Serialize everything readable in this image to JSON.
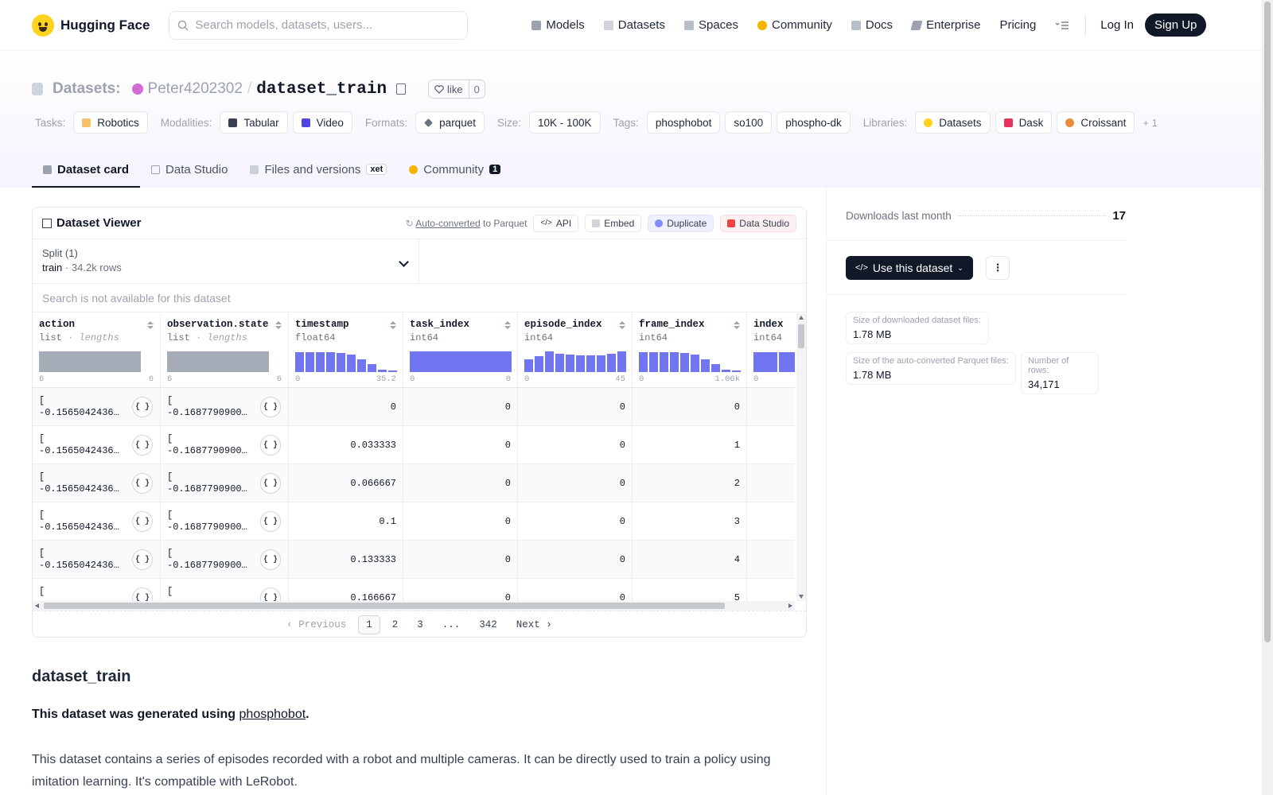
{
  "header": {
    "brand": "Hugging Face",
    "search_placeholder": "Search models, datasets, users...",
    "nav": [
      {
        "label": "Models",
        "icon": "cube-icon",
        "color": "#9ca3af"
      },
      {
        "label": "Datasets",
        "icon": "database-icon",
        "color": "#cfd3da"
      },
      {
        "label": "Spaces",
        "icon": "spaces-icon",
        "color": "#b8bec8"
      },
      {
        "label": "Community",
        "icon": "community-icon",
        "color": "#f5b400"
      },
      {
        "label": "Docs",
        "icon": "book-icon",
        "color": "#b8bec8"
      },
      {
        "label": "Enterprise",
        "icon": "enterprise-icon",
        "color": "#9ca3af"
      },
      {
        "label": "Pricing"
      }
    ],
    "login": "Log In",
    "signup": "Sign Up"
  },
  "repo": {
    "section": "Datasets:",
    "owner": "Peter4202302",
    "slash": "/",
    "name": "dataset_train",
    "like_label": "like",
    "like_count": "0"
  },
  "tags": {
    "tasks_label": "Tasks:",
    "tasks": [
      "Robotics"
    ],
    "modalities_label": "Modalities:",
    "modalities": [
      "Tabular",
      "Video"
    ],
    "formats_label": "Formats:",
    "formats": [
      "parquet"
    ],
    "size_label": "Size:",
    "size": [
      "10K - 100K"
    ],
    "tags_label": "Tags:",
    "tags": [
      "phosphobot",
      "so100",
      "phospho-dk"
    ],
    "libraries_label": "Libraries:",
    "libraries": [
      "Datasets",
      "Dask",
      "Croissant"
    ],
    "more": "+ 1"
  },
  "tabs": [
    {
      "label": "Dataset card",
      "active": true
    },
    {
      "label": "Data Studio"
    },
    {
      "label": "Files and versions",
      "badge": "xet"
    },
    {
      "label": "Community",
      "badge": "1"
    }
  ],
  "viewer": {
    "title": "Dataset Viewer",
    "autoconv_link": "Auto-converted",
    "autoconv_rest": "to Parquet",
    "api": "API",
    "embed": "Embed",
    "duplicate": "Duplicate",
    "studio": "Data Studio",
    "split_label": "Split (1)",
    "split_name": "train",
    "split_sep": "·",
    "split_rows": "34.2k rows",
    "search_na": "Search is not available for this dataset",
    "columns": [
      {
        "name": "action",
        "type": "list",
        "sub": "lengths",
        "min": "6",
        "max": "6"
      },
      {
        "name": "observation.state",
        "type": "list",
        "sub": "lengths",
        "min": "6",
        "max": "6"
      },
      {
        "name": "timestamp",
        "type": "float64",
        "min": "0",
        "max": "35.2"
      },
      {
        "name": "task_index",
        "type": "int64",
        "min": "0",
        "max": "0"
      },
      {
        "name": "episode_index",
        "type": "int64",
        "min": "0",
        "max": "45"
      },
      {
        "name": "frame_index",
        "type": "int64",
        "min": "0",
        "max": "1.06k"
      },
      {
        "name": "index",
        "type": "int64",
        "min": "0",
        "max": ""
      }
    ],
    "histograms": {
      "timestamp": [
        0.95,
        0.95,
        0.95,
        0.95,
        0.92,
        0.85,
        0.6,
        0.38,
        0.12,
        0.05
      ],
      "task_index": [
        1.0
      ],
      "episode_index": [
        0.6,
        0.75,
        1.0,
        0.88,
        0.85,
        0.82,
        0.8,
        0.8,
        0.88,
        1.0
      ],
      "frame_index": [
        0.95,
        0.95,
        0.95,
        0.95,
        0.92,
        0.85,
        0.6,
        0.38,
        0.12,
        0.05
      ],
      "index": [
        0.95,
        0.95,
        0.95,
        0.95
      ]
    },
    "json_icon_label": "{ }",
    "rows": [
      {
        "action": "[",
        "action2": "-0.15650424361…",
        "obs": "[",
        "obs2": "-0.16877909004…",
        "timestamp": "0",
        "task_index": "0",
        "episode_index": "0",
        "frame_index": "0"
      },
      {
        "action": "[",
        "action2": "-0.15650424361…",
        "obs": "[",
        "obs2": "-0.16877909004…",
        "timestamp": "0.033333",
        "task_index": "0",
        "episode_index": "0",
        "frame_index": "1"
      },
      {
        "action": "[",
        "action2": "-0.15650424361…",
        "obs": "[",
        "obs2": "-0.16877909004…",
        "timestamp": "0.066667",
        "task_index": "0",
        "episode_index": "0",
        "frame_index": "2"
      },
      {
        "action": "[",
        "action2": "-0.15650424361…",
        "obs": "[",
        "obs2": "-0.16877909004…",
        "timestamp": "0.1",
        "task_index": "0",
        "episode_index": "0",
        "frame_index": "3"
      },
      {
        "action": "[",
        "action2": "-0.15650424361…",
        "obs": "[",
        "obs2": "-0.16877909004…",
        "timestamp": "0.133333",
        "task_index": "0",
        "episode_index": "0",
        "frame_index": "4"
      },
      {
        "action": "[",
        "action2": "",
        "obs": "[",
        "obs2": "",
        "timestamp": "0.166667",
        "task_index": "0",
        "episode_index": "0",
        "frame_index": "5"
      }
    ],
    "pager": {
      "prev": "Previous",
      "pages": [
        "1",
        "2",
        "3",
        "...",
        "342"
      ],
      "next": "Next",
      "current": "1"
    }
  },
  "readme": {
    "heading": "dataset_train",
    "p1_prefix": "This dataset was generated using",
    "p1_link": "phosphobot",
    "p1_suffix": ".",
    "p2": "This dataset contains a series of episodes recorded with a robot and multiple cameras. It can be directly used to train a policy using imitation learning. It's compatible with LeRobot."
  },
  "sidebar": {
    "downloads_label": "Downloads last month",
    "downloads_value": "17",
    "use_button": "Use this dataset",
    "size_dl_label": "Size of downloaded dataset files:",
    "size_dl_value": "1.78 MB",
    "size_parquet_label": "Size of the auto-converted Parquet files:",
    "size_parquet_value": "1.78 MB",
    "rows_label": "Number of rows:",
    "rows_value": "34,171"
  }
}
